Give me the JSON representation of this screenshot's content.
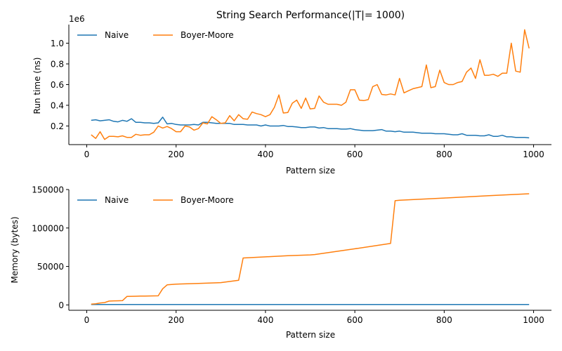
{
  "chart_data": [
    {
      "type": "line",
      "title": "String Search Performance(|T|= 1000)",
      "xlabel": "Pattern size",
      "ylabel": "Run time (ns)",
      "y_offset_label": "1e6",
      "xlim": [
        -40,
        1040
      ],
      "ylim": [
        0.02,
        1.18
      ],
      "xticks": [
        0,
        200,
        400,
        600,
        800,
        1000
      ],
      "xtick_labels": [
        "0",
        "200",
        "400",
        "600",
        "800",
        "1000"
      ],
      "yticks": [
        0.2,
        0.4,
        0.6,
        0.8,
        1.0
      ],
      "ytick_labels": [
        "0.2",
        "0.4",
        "0.6",
        "0.8",
        "1.0"
      ],
      "grid": false,
      "legend": "top-left",
      "series": [
        {
          "name": "Naive",
          "color": "#1f77b4",
          "x": [
            10,
            20,
            30,
            40,
            50,
            60,
            70,
            80,
            90,
            100,
            110,
            120,
            130,
            140,
            150,
            160,
            170,
            180,
            190,
            200,
            210,
            220,
            230,
            240,
            250,
            260,
            270,
            280,
            290,
            300,
            310,
            320,
            330,
            340,
            350,
            360,
            370,
            380,
            390,
            400,
            410,
            420,
            430,
            440,
            450,
            460,
            470,
            480,
            490,
            500,
            510,
            520,
            530,
            540,
            550,
            560,
            570,
            580,
            590,
            600,
            610,
            620,
            630,
            640,
            650,
            660,
            670,
            680,
            690,
            700,
            710,
            720,
            730,
            740,
            750,
            760,
            770,
            780,
            790,
            800,
            810,
            820,
            830,
            840,
            850,
            860,
            870,
            880,
            890,
            900,
            910,
            920,
            930,
            940,
            950,
            960,
            970,
            980,
            990
          ],
          "y": [
            0.255,
            0.26,
            0.25,
            0.255,
            0.26,
            0.245,
            0.24,
            0.255,
            0.245,
            0.27,
            0.235,
            0.235,
            0.23,
            0.23,
            0.225,
            0.23,
            0.285,
            0.22,
            0.225,
            0.215,
            0.21,
            0.21,
            0.21,
            0.215,
            0.21,
            0.235,
            0.235,
            0.23,
            0.225,
            0.225,
            0.225,
            0.225,
            0.215,
            0.215,
            0.215,
            0.21,
            0.21,
            0.21,
            0.2,
            0.21,
            0.2,
            0.2,
            0.2,
            0.205,
            0.195,
            0.195,
            0.19,
            0.185,
            0.185,
            0.19,
            0.19,
            0.18,
            0.185,
            0.175,
            0.175,
            0.175,
            0.17,
            0.17,
            0.175,
            0.165,
            0.16,
            0.155,
            0.155,
            0.155,
            0.16,
            0.165,
            0.15,
            0.15,
            0.145,
            0.15,
            0.14,
            0.14,
            0.14,
            0.135,
            0.13,
            0.13,
            0.13,
            0.125,
            0.125,
            0.125,
            0.12,
            0.115,
            0.115,
            0.125,
            0.11,
            0.11,
            0.11,
            0.105,
            0.105,
            0.115,
            0.1,
            0.1,
            0.11,
            0.095,
            0.095,
            0.09,
            0.09,
            0.09,
            0.085
          ]
        },
        {
          "name": "Boyer-Moore",
          "color": "#ff7f0e",
          "x": [
            10,
            20,
            30,
            40,
            50,
            60,
            70,
            80,
            90,
            100,
            110,
            120,
            130,
            140,
            150,
            160,
            170,
            180,
            190,
            200,
            210,
            220,
            230,
            240,
            250,
            260,
            270,
            280,
            290,
            300,
            310,
            320,
            330,
            340,
            350,
            360,
            370,
            380,
            390,
            400,
            410,
            420,
            430,
            440,
            450,
            460,
            470,
            480,
            490,
            500,
            510,
            520,
            530,
            540,
            550,
            560,
            570,
            580,
            590,
            600,
            610,
            620,
            630,
            640,
            650,
            660,
            670,
            680,
            690,
            700,
            710,
            720,
            730,
            740,
            750,
            760,
            770,
            780,
            790,
            800,
            810,
            820,
            830,
            840,
            850,
            860,
            870,
            880,
            890,
            900,
            910,
            920,
            930,
            940,
            950,
            960,
            970,
            980,
            990
          ],
          "y": [
            0.115,
            0.08,
            0.145,
            0.07,
            0.1,
            0.1,
            0.095,
            0.105,
            0.09,
            0.09,
            0.12,
            0.11,
            0.115,
            0.115,
            0.14,
            0.2,
            0.18,
            0.195,
            0.175,
            0.145,
            0.145,
            0.2,
            0.19,
            0.16,
            0.175,
            0.23,
            0.22,
            0.29,
            0.26,
            0.225,
            0.23,
            0.3,
            0.25,
            0.31,
            0.27,
            0.265,
            0.335,
            0.32,
            0.31,
            0.29,
            0.31,
            0.38,
            0.5,
            0.325,
            0.33,
            0.42,
            0.45,
            0.37,
            0.47,
            0.365,
            0.37,
            0.49,
            0.43,
            0.41,
            0.41,
            0.41,
            0.4,
            0.43,
            0.55,
            0.55,
            0.45,
            0.445,
            0.455,
            0.58,
            0.6,
            0.505,
            0.5,
            0.51,
            0.5,
            0.66,
            0.52,
            0.54,
            0.56,
            0.57,
            0.58,
            0.79,
            0.57,
            0.58,
            0.74,
            0.62,
            0.6,
            0.6,
            0.62,
            0.63,
            0.72,
            0.76,
            0.66,
            0.84,
            0.69,
            0.69,
            0.7,
            0.68,
            0.71,
            0.71,
            1.0,
            0.73,
            0.72,
            1.13,
            0.95
          ]
        }
      ]
    },
    {
      "type": "line",
      "title": "",
      "xlabel": "Pattern size",
      "ylabel": "Memory (bytes)",
      "xlim": [
        -40,
        1040
      ],
      "ylim": [
        -7000,
        150000
      ],
      "xticks": [
        0,
        200,
        400,
        600,
        800,
        1000
      ],
      "xtick_labels": [
        "0",
        "200",
        "400",
        "600",
        "800",
        "1000"
      ],
      "yticks": [
        0,
        50000,
        100000,
        150000
      ],
      "ytick_labels": [
        "0",
        "50000",
        "100000",
        "150000"
      ],
      "grid": false,
      "legend": "top-left",
      "series": [
        {
          "name": "Naive",
          "color": "#1f77b4",
          "x": [
            10,
            990
          ],
          "y": [
            500,
            500
          ]
        },
        {
          "name": "Boyer-Moore",
          "color": "#ff7f0e",
          "x": [
            10,
            20,
            30,
            40,
            50,
            60,
            70,
            80,
            90,
            100,
            110,
            120,
            130,
            140,
            150,
            160,
            170,
            180,
            190,
            200,
            250,
            300,
            340,
            350,
            400,
            450,
            500,
            510,
            600,
            680,
            690,
            700,
            800,
            900,
            990
          ],
          "y": [
            1000,
            1500,
            2500,
            3000,
            5000,
            5200,
            5300,
            5500,
            11000,
            11200,
            11300,
            11400,
            11500,
            11600,
            11700,
            11800,
            21000,
            26000,
            26500,
            27000,
            28000,
            29000,
            32000,
            61000,
            62500,
            64000,
            65000,
            65500,
            73000,
            80000,
            135500,
            136000,
            139000,
            142000,
            144500
          ]
        }
      ]
    }
  ]
}
